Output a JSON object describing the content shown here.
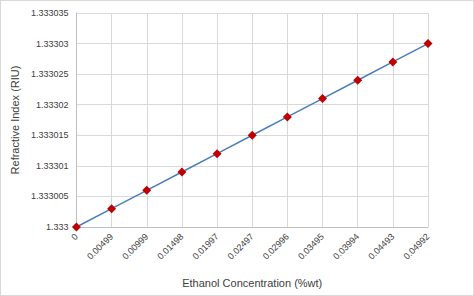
{
  "chart_data": {
    "type": "line",
    "x_label": "Ethanol Concentration (%wt)",
    "y_label": "Refractive Index (RIU)",
    "categories": [
      "0",
      "0.00499",
      "0.00999",
      "0.01498",
      "0.01997",
      "0.02497",
      "0.02996",
      "0.03495",
      "0.03994",
      "0.04493",
      "0.04992"
    ],
    "series": [
      {
        "name": "Refractive Index",
        "color": "#4a7ebb",
        "marker": "diamond",
        "line_style": "solid",
        "values": [
          1.333,
          1.333003,
          1.333006,
          1.333009,
          1.333012,
          1.333015,
          1.333018,
          1.333021,
          1.333024,
          1.333027,
          1.33303
        ]
      }
    ],
    "marker_color": "#c00000",
    "ylim": [
      1.333,
      1.333035
    ],
    "yticks": [
      1.333,
      1.333005,
      1.33301,
      1.333015,
      1.33302,
      1.333025,
      1.33303,
      1.333035
    ],
    "grid": true
  }
}
